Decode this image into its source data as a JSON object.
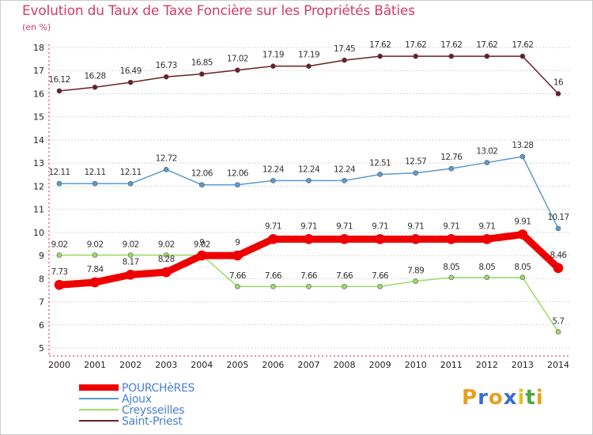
{
  "header": {
    "title": "Evolution du Taux de Taxe Foncière sur les Propriétés Bâties",
    "subtitle": "(en %)"
  },
  "logo": {
    "letters": [
      "P",
      "r",
      "o",
      "x",
      "i",
      "t",
      "i"
    ],
    "colors": [
      "#e8a020",
      "#3a6fc8",
      "#e8a020",
      "#3a6fc8",
      "#e8c020",
      "#4aa83a",
      "#e8a020"
    ]
  },
  "chart_data": {
    "type": "line",
    "title": "Evolution du Taux de Taxe Foncière sur les Propriétés Bâties",
    "ylabel": "(en %)",
    "xlabel": "",
    "ylim": [
      5,
      18
    ],
    "yticks": [
      5,
      6,
      7,
      8,
      9,
      10,
      11,
      12,
      13,
      14,
      15,
      16,
      17,
      18
    ],
    "categories": [
      "2000",
      "2001",
      "2002",
      "2003",
      "2004",
      "2005",
      "2006",
      "2007",
      "2008",
      "2009",
      "2010",
      "2011",
      "2012",
      "2013",
      "2014"
    ],
    "grid": true,
    "series": [
      {
        "name": "Saint-Priest",
        "color": "#6b1f25",
        "values": [
          16.12,
          16.28,
          16.49,
          16.73,
          16.85,
          17.02,
          17.19,
          17.19,
          17.45,
          17.62,
          17.62,
          17.62,
          17.62,
          17.62,
          16
        ],
        "labels": [
          "16.12",
          "16.28",
          "16.49",
          "16.73",
          "16.85",
          "17.02",
          "17.19",
          "17.19",
          "17.45",
          "17.62",
          "17.62",
          "17.62",
          "17.62",
          "17.62",
          "16"
        ]
      },
      {
        "name": "Ajoux",
        "color": "#5a9ad0",
        "values": [
          12.11,
          12.11,
          12.11,
          12.72,
          12.06,
          12.06,
          12.24,
          12.24,
          12.24,
          12.51,
          12.57,
          12.76,
          13.02,
          13.28,
          10.17
        ],
        "labels": [
          "12.11",
          "12.11",
          "12.11",
          "12.72",
          "12.06",
          "12.06",
          "12.24",
          "12.24",
          "12.24",
          "12.51",
          "12.57",
          "12.76",
          "13.02",
          "13.28",
          "10.17"
        ]
      },
      {
        "name": "Creysseilles",
        "color": "#99dd66",
        "values": [
          9.02,
          9.02,
          9.02,
          9.02,
          9.02,
          7.66,
          7.66,
          7.66,
          7.66,
          7.66,
          7.89,
          8.05,
          8.05,
          8.05,
          5.7
        ],
        "labels": [
          "9.02",
          "9.02",
          "9.02",
          "9.02",
          "9.02",
          "7.66",
          "7.66",
          "7.66",
          "7.66",
          "7.66",
          "7.89",
          "8.05",
          "8.05",
          "8.05",
          "5.7"
        ]
      },
      {
        "name": "POURCHèRES",
        "color": "#ee0000",
        "values": [
          7.73,
          7.84,
          8.17,
          8.28,
          9,
          9,
          9.71,
          9.71,
          9.71,
          9.71,
          9.71,
          9.71,
          9.71,
          9.91,
          8.46
        ],
        "labels": [
          "7.73",
          "7.84",
          "8.17",
          "8.28",
          "9",
          "9",
          "9.71",
          "9.71",
          "9.71",
          "9.71",
          "9.71",
          "9.71",
          "9.71",
          "9.91",
          "8.46"
        ]
      }
    ],
    "legend": {
      "placement": "bottom-left",
      "order": [
        "POURCHèRES",
        "Ajoux",
        "Creysseilles",
        "Saint-Priest"
      ]
    }
  }
}
